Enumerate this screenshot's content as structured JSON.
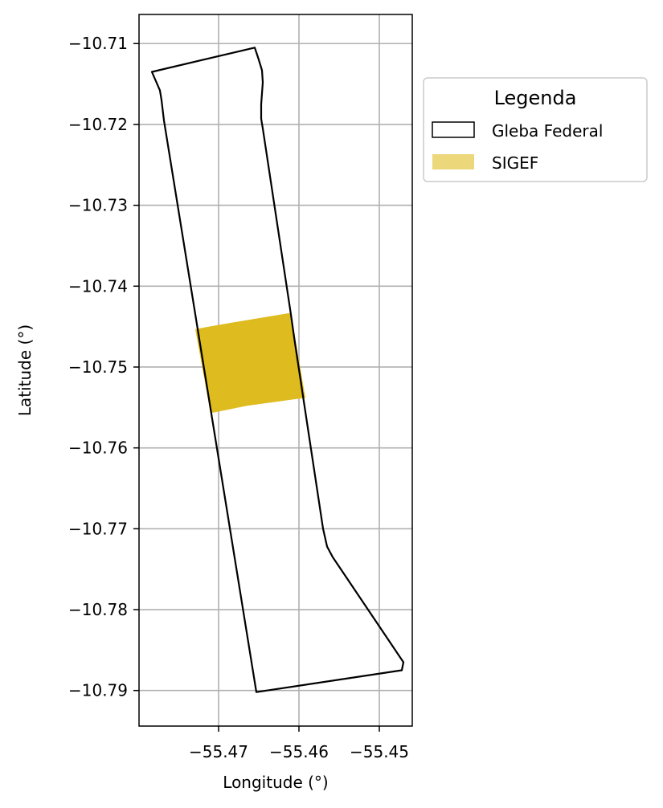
{
  "chart_data": {
    "type": "map",
    "xlabel": "Longitude (°)",
    "ylabel": "Latitude (°)",
    "xlim": [
      -55.4799,
      -55.4459
    ],
    "ylim": [
      -10.7944,
      -10.7064
    ],
    "xticks": [
      -55.47,
      -55.46,
      -55.45
    ],
    "xtick_labels": [
      "−55.47",
      "−55.46",
      "−55.45"
    ],
    "yticks": [
      -10.71,
      -10.72,
      -10.73,
      -10.74,
      -10.75,
      -10.76,
      -10.77,
      -10.78,
      -10.79
    ],
    "ytick_labels": [
      "−10.71",
      "−10.72",
      "−10.73",
      "−10.74",
      "−10.75",
      "−10.76",
      "−10.77",
      "−10.78",
      "−10.79"
    ],
    "grid": true,
    "legend": {
      "title": "Legenda",
      "placement": "outside-right-top",
      "entries": [
        "Gleba Federal",
        "SIGEF"
      ]
    },
    "series": [
      {
        "name": "Gleba Federal",
        "kind": "polygon-outline",
        "color": "#000000",
        "points": [
          [
            -55.4783,
            -10.7135
          ],
          [
            -55.4655,
            -10.7105
          ],
          [
            -55.465,
            -10.712
          ],
          [
            -55.4646,
            -10.7133
          ],
          [
            -55.4645,
            -10.7148
          ],
          [
            -55.4647,
            -10.7175
          ],
          [
            -55.4647,
            -10.7193
          ],
          [
            -55.4645,
            -10.7205
          ],
          [
            -55.461,
            -10.7435
          ],
          [
            -55.4605,
            -10.747
          ],
          [
            -55.457,
            -10.77
          ],
          [
            -55.4565,
            -10.7722
          ],
          [
            -55.4558,
            -10.7735
          ],
          [
            -55.447,
            -10.7865
          ],
          [
            -55.4472,
            -10.7875
          ],
          [
            -55.4653,
            -10.7902
          ],
          [
            -55.4768,
            -10.7195
          ],
          [
            -55.4771,
            -10.717
          ],
          [
            -55.4773,
            -10.7158
          ],
          [
            -55.4783,
            -10.7135
          ]
        ]
      },
      {
        "name": "SIGEF",
        "kind": "polygon-fill",
        "color": "#DEBB1E",
        "legend_color": "#ECD77A",
        "points": [
          [
            -55.4729,
            -10.7453
          ],
          [
            -55.4683,
            -10.7445
          ],
          [
            -55.461,
            -10.7433
          ],
          [
            -55.4592,
            -10.7538
          ],
          [
            -55.4665,
            -10.7548
          ],
          [
            -55.471,
            -10.7557
          ]
        ]
      }
    ]
  }
}
